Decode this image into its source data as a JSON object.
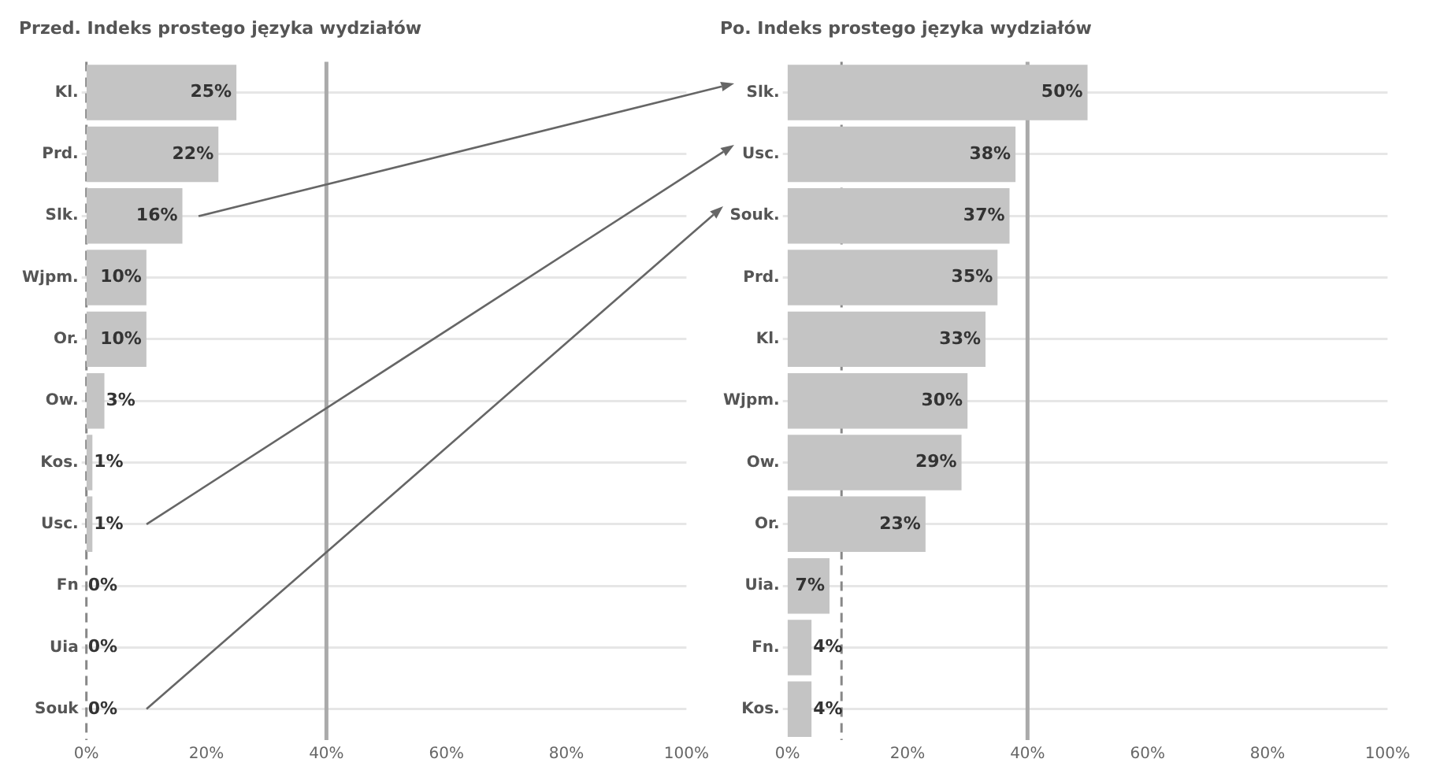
{
  "chart_data": [
    {
      "type": "bar",
      "orientation": "horizontal",
      "title": "Przed. Indeks prostego języka wydziałów",
      "categories": [
        "Kl.",
        "Prd.",
        "Slk.",
        "Wjpm.",
        "Or.",
        "Ow.",
        "Kos.",
        "Usc.",
        "Fn",
        "Uia",
        "Souk"
      ],
      "values": [
        25,
        22,
        16,
        10,
        10,
        3,
        1,
        1,
        0,
        0,
        0
      ],
      "value_labels": [
        "25%",
        "22%",
        "16%",
        "10%",
        "10%",
        "3%",
        "1%",
        "1%",
        "0%",
        "0%",
        "0%"
      ],
      "color": "#c4c4c4",
      "xlim": [
        0,
        100
      ],
      "xticks": [
        {
          "value": 0,
          "label": "0%"
        },
        {
          "value": 20,
          "label": "20%"
        },
        {
          "value": 40,
          "label": "40%"
        },
        {
          "value": 60,
          "label": "60%"
        },
        {
          "value": 80,
          "label": "80%"
        },
        {
          "value": 100,
          "label": "100%"
        }
      ],
      "ref_lines": [
        {
          "axis": "x",
          "value": 0,
          "color": "#888888",
          "line_style": "dashed"
        },
        {
          "axis": "x",
          "value": 40,
          "color": "#aaaaaa",
          "line_style": "solid"
        }
      ],
      "grid": "y",
      "legend": false
    },
    {
      "type": "bar",
      "orientation": "horizontal",
      "title": "Po. Indeks prostego języka wydziałów",
      "categories": [
        "Slk.",
        "Usc.",
        "Souk.",
        "Prd.",
        "Kl.",
        "Wjpm.",
        "Ow.",
        "Or.",
        "Uia.",
        "Fn.",
        "Kos."
      ],
      "values": [
        50,
        38,
        37,
        35,
        33,
        30,
        29,
        23,
        7,
        4,
        4
      ],
      "value_labels": [
        "50%",
        "38%",
        "37%",
        "35%",
        "33%",
        "30%",
        "29%",
        "23%",
        "7%",
        "4%",
        "4%"
      ],
      "color": "#c4c4c4",
      "xlim": [
        0,
        100
      ],
      "xticks": [
        {
          "value": 0,
          "label": "0%"
        },
        {
          "value": 20,
          "label": "20%"
        },
        {
          "value": 40,
          "label": "40%"
        },
        {
          "value": 60,
          "label": "60%"
        },
        {
          "value": 80,
          "label": "80%"
        },
        {
          "value": 100,
          "label": "100%"
        }
      ],
      "ref_lines": [
        {
          "axis": "x",
          "value": 9,
          "color": "#888888",
          "line_style": "dashed"
        },
        {
          "axis": "x",
          "value": 40,
          "color": "#aaaaaa",
          "line_style": "solid"
        }
      ],
      "grid": "y",
      "legend": false
    }
  ]
}
